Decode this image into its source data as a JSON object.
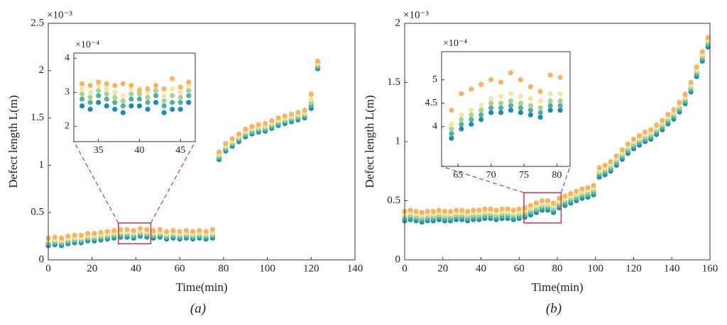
{
  "chart_data": [
    {
      "type": "scatter",
      "caption": "(a)",
      "x_label": "Time(min)",
      "y_label": "Defect length L(m)",
      "y_multiplier": "×10⁻³",
      "xlim": [
        0,
        140
      ],
      "xticks": [
        0,
        20,
        40,
        60,
        80,
        100,
        120,
        140
      ],
      "ylim": [
        0,
        2.5
      ],
      "yticks": [
        0,
        0.5,
        1,
        1.5,
        2,
        2.5
      ],
      "x": [
        0,
        3,
        6,
        9,
        12,
        15,
        18,
        21,
        24,
        27,
        30,
        33,
        36,
        39,
        42,
        45,
        48,
        51,
        54,
        57,
        60,
        63,
        66,
        69,
        72,
        75,
        78,
        81,
        84,
        87,
        90,
        93,
        96,
        99,
        102,
        105,
        108,
        111,
        114,
        117,
        120,
        123
      ],
      "series": [
        {
          "color": "#1f8bb5",
          "values": [
            0.15,
            0.16,
            0.15,
            0.17,
            0.18,
            0.18,
            0.2,
            0.2,
            0.21,
            0.22,
            0.23,
            0.24,
            0.24,
            0.23,
            0.25,
            0.24,
            0.23,
            0.24,
            0.22,
            0.23,
            0.22,
            0.23,
            0.22,
            0.23,
            0.22,
            0.23,
            1.06,
            1.15,
            1.2,
            1.25,
            1.3,
            1.33,
            1.35,
            1.36,
            1.39,
            1.42,
            1.44,
            1.46,
            1.48,
            1.5,
            1.6,
            2.02
          ]
        },
        {
          "color": "#4fb39a",
          "values": [
            0.17,
            0.18,
            0.17,
            0.19,
            0.2,
            0.2,
            0.22,
            0.22,
            0.23,
            0.24,
            0.25,
            0.26,
            0.26,
            0.25,
            0.27,
            0.26,
            0.25,
            0.26,
            0.24,
            0.25,
            0.24,
            0.25,
            0.24,
            0.25,
            0.24,
            0.25,
            1.08,
            1.17,
            1.22,
            1.27,
            1.32,
            1.35,
            1.37,
            1.38,
            1.41,
            1.44,
            1.46,
            1.48,
            1.5,
            1.52,
            1.63,
            2.04
          ]
        },
        {
          "color": "#a6d48f",
          "values": [
            0.19,
            0.2,
            0.19,
            0.21,
            0.22,
            0.22,
            0.24,
            0.24,
            0.25,
            0.26,
            0.27,
            0.28,
            0.28,
            0.27,
            0.29,
            0.28,
            0.27,
            0.28,
            0.26,
            0.27,
            0.26,
            0.27,
            0.26,
            0.27,
            0.26,
            0.27,
            1.1,
            1.19,
            1.24,
            1.29,
            1.34,
            1.37,
            1.39,
            1.4,
            1.43,
            1.46,
            1.48,
            1.5,
            1.52,
            1.54,
            1.66,
            2.06
          ]
        },
        {
          "color": "#f3e7a0",
          "values": [
            0.21,
            0.22,
            0.21,
            0.23,
            0.24,
            0.24,
            0.26,
            0.26,
            0.27,
            0.28,
            0.29,
            0.3,
            0.3,
            0.29,
            0.31,
            0.3,
            0.29,
            0.3,
            0.28,
            0.29,
            0.28,
            0.29,
            0.28,
            0.29,
            0.28,
            0.29,
            1.12,
            1.21,
            1.26,
            1.31,
            1.36,
            1.39,
            1.41,
            1.42,
            1.45,
            1.48,
            1.5,
            1.52,
            1.54,
            1.56,
            1.7,
            2.08
          ]
        },
        {
          "color": "#f9b35e",
          "values": [
            0.23,
            0.24,
            0.23,
            0.25,
            0.26,
            0.26,
            0.28,
            0.28,
            0.29,
            0.3,
            0.31,
            0.32,
            0.32,
            0.31,
            0.33,
            0.32,
            0.31,
            0.32,
            0.3,
            0.31,
            0.3,
            0.31,
            0.3,
            0.31,
            0.3,
            0.32,
            1.14,
            1.23,
            1.28,
            1.33,
            1.38,
            1.41,
            1.43,
            1.44,
            1.47,
            1.5,
            1.52,
            1.54,
            1.56,
            1.58,
            1.75,
            2.1
          ]
        }
      ]
    },
    {
      "type": "scatter",
      "y_multiplier": "×10⁻⁴",
      "xlim": [
        32,
        46.8
      ],
      "xticks": [
        35,
        40,
        45
      ],
      "ylim": [
        1.55,
        4.15
      ],
      "yticks": [
        2,
        3,
        4
      ],
      "x": [
        33,
        34,
        35,
        36,
        37,
        38,
        39,
        40,
        41,
        42,
        43,
        44,
        45,
        46
      ],
      "series": [
        {
          "color": "#1f8bb5",
          "values": [
            2.6,
            2.5,
            2.7,
            2.6,
            2.5,
            2.4,
            2.6,
            2.6,
            2.5,
            2.7,
            2.4,
            2.5,
            2.5,
            2.7
          ]
        },
        {
          "color": "#4fb39a",
          "values": [
            2.8,
            2.7,
            2.9,
            2.8,
            2.7,
            2.6,
            2.8,
            2.8,
            2.7,
            2.9,
            2.6,
            2.7,
            2.7,
            2.9
          ]
        },
        {
          "color": "#a6d48f",
          "values": [
            2.95,
            2.85,
            3.05,
            2.95,
            2.85,
            2.75,
            2.95,
            2.95,
            2.85,
            3.05,
            2.75,
            2.9,
            2.85,
            3.05
          ]
        },
        {
          "color": "#f3e7a0",
          "values": [
            3.1,
            3.0,
            3.2,
            3.1,
            3.0,
            2.9,
            3.1,
            3.1,
            3.0,
            3.2,
            2.9,
            3.1,
            3.0,
            3.2
          ]
        },
        {
          "color": "#f9b35e",
          "values": [
            3.25,
            3.2,
            3.3,
            3.25,
            3.2,
            3.25,
            3.2,
            3.05,
            3.1,
            3.2,
            3.1,
            3.4,
            3.15,
            3.3
          ]
        }
      ]
    },
    {
      "type": "scatter",
      "caption": "(b)",
      "x_label": "Time(min)",
      "y_label": "Defect length L(m)",
      "y_multiplier": "×10⁻³",
      "xlim": [
        0,
        160
      ],
      "xticks": [
        0,
        20,
        40,
        60,
        80,
        100,
        120,
        140,
        160
      ],
      "ylim": [
        0,
        2
      ],
      "yticks": [
        0,
        0.5,
        1,
        1.5,
        2
      ],
      "x": [
        0,
        3,
        6,
        9,
        12,
        15,
        18,
        21,
        24,
        27,
        30,
        33,
        36,
        39,
        42,
        45,
        48,
        51,
        54,
        57,
        60,
        63,
        66,
        69,
        72,
        75,
        78,
        81,
        84,
        87,
        90,
        93,
        96,
        99,
        102,
        105,
        108,
        111,
        114,
        117,
        120,
        123,
        126,
        129,
        132,
        135,
        138,
        141,
        144,
        147,
        150,
        153,
        156,
        159
      ],
      "series": [
        {
          "color": "#1f8bb5",
          "values": [
            0.33,
            0.34,
            0.33,
            0.32,
            0.33,
            0.33,
            0.34,
            0.33,
            0.33,
            0.34,
            0.34,
            0.33,
            0.34,
            0.34,
            0.35,
            0.35,
            0.34,
            0.35,
            0.35,
            0.34,
            0.35,
            0.36,
            0.38,
            0.4,
            0.42,
            0.42,
            0.4,
            0.44,
            0.46,
            0.48,
            0.5,
            0.52,
            0.53,
            0.55,
            0.7,
            0.72,
            0.75,
            0.8,
            0.85,
            0.9,
            0.94,
            0.97,
            1.0,
            1.02,
            1.06,
            1.1,
            1.15,
            1.19,
            1.25,
            1.32,
            1.42,
            1.55,
            1.68,
            1.8
          ]
        },
        {
          "color": "#4fb39a",
          "values": [
            0.35,
            0.36,
            0.35,
            0.34,
            0.35,
            0.35,
            0.36,
            0.35,
            0.35,
            0.36,
            0.36,
            0.35,
            0.36,
            0.36,
            0.37,
            0.37,
            0.36,
            0.37,
            0.37,
            0.36,
            0.37,
            0.38,
            0.4,
            0.42,
            0.44,
            0.44,
            0.42,
            0.46,
            0.48,
            0.5,
            0.52,
            0.54,
            0.55,
            0.57,
            0.72,
            0.74,
            0.77,
            0.82,
            0.87,
            0.92,
            0.96,
            0.99,
            1.02,
            1.04,
            1.08,
            1.12,
            1.17,
            1.21,
            1.27,
            1.34,
            1.44,
            1.57,
            1.7,
            1.82
          ]
        },
        {
          "color": "#a6d48f",
          "values": [
            0.37,
            0.38,
            0.37,
            0.36,
            0.37,
            0.37,
            0.38,
            0.37,
            0.37,
            0.38,
            0.38,
            0.37,
            0.38,
            0.38,
            0.39,
            0.39,
            0.38,
            0.39,
            0.39,
            0.38,
            0.39,
            0.4,
            0.42,
            0.44,
            0.46,
            0.46,
            0.44,
            0.48,
            0.5,
            0.52,
            0.54,
            0.56,
            0.57,
            0.59,
            0.74,
            0.76,
            0.79,
            0.84,
            0.89,
            0.94,
            0.98,
            1.01,
            1.04,
            1.06,
            1.1,
            1.14,
            1.19,
            1.23,
            1.29,
            1.36,
            1.46,
            1.59,
            1.72,
            1.84
          ]
        },
        {
          "color": "#f3e7a0",
          "values": [
            0.39,
            0.4,
            0.39,
            0.38,
            0.39,
            0.39,
            0.4,
            0.39,
            0.39,
            0.4,
            0.4,
            0.39,
            0.4,
            0.4,
            0.41,
            0.41,
            0.4,
            0.41,
            0.41,
            0.4,
            0.41,
            0.42,
            0.44,
            0.46,
            0.48,
            0.48,
            0.46,
            0.5,
            0.52,
            0.54,
            0.56,
            0.58,
            0.59,
            0.61,
            0.76,
            0.78,
            0.81,
            0.86,
            0.91,
            0.96,
            1.0,
            1.03,
            1.06,
            1.08,
            1.12,
            1.16,
            1.21,
            1.25,
            1.31,
            1.38,
            1.48,
            1.61,
            1.74,
            1.86
          ]
        },
        {
          "color": "#f9b35e",
          "values": [
            0.41,
            0.42,
            0.41,
            0.4,
            0.41,
            0.41,
            0.42,
            0.41,
            0.41,
            0.42,
            0.42,
            0.41,
            0.42,
            0.42,
            0.43,
            0.43,
            0.42,
            0.43,
            0.43,
            0.42,
            0.43,
            0.44,
            0.46,
            0.48,
            0.5,
            0.5,
            0.48,
            0.52,
            0.54,
            0.56,
            0.58,
            0.6,
            0.61,
            0.63,
            0.78,
            0.8,
            0.83,
            0.88,
            0.93,
            0.98,
            1.02,
            1.05,
            1.08,
            1.1,
            1.14,
            1.18,
            1.23,
            1.27,
            1.33,
            1.4,
            1.5,
            1.63,
            1.76,
            1.88
          ]
        }
      ]
    },
    {
      "type": "scatter",
      "y_multiplier": "×10⁻⁴",
      "xlim": [
        62.5,
        82
      ],
      "xticks": [
        65,
        70,
        75,
        80
      ],
      "ylim": [
        3.15,
        5.6
      ],
      "yticks": [
        4,
        4.5,
        5
      ],
      "x": [
        64,
        65.5,
        67,
        68.5,
        70,
        71.5,
        73,
        74.5,
        76,
        77.5,
        79,
        80.5
      ],
      "series": [
        {
          "color": "#1f8bb5",
          "values": [
            3.75,
            3.95,
            4.05,
            4.15,
            4.3,
            4.3,
            4.35,
            4.3,
            4.25,
            4.2,
            4.35,
            4.35
          ]
        },
        {
          "color": "#4fb39a",
          "values": [
            3.85,
            4.05,
            4.15,
            4.25,
            4.4,
            4.4,
            4.45,
            4.4,
            4.35,
            4.3,
            4.45,
            4.45
          ]
        },
        {
          "color": "#a6d48f",
          "values": [
            3.95,
            4.15,
            4.25,
            4.35,
            4.5,
            4.5,
            4.55,
            4.5,
            4.45,
            4.4,
            4.55,
            4.55
          ]
        },
        {
          "color": "#f3e7a0",
          "values": [
            4.05,
            4.25,
            4.35,
            4.45,
            4.6,
            4.65,
            4.7,
            4.65,
            4.6,
            4.55,
            4.7,
            4.7
          ]
        },
        {
          "color": "#f9b35e",
          "values": [
            4.35,
            4.7,
            4.8,
            4.9,
            5.0,
            4.95,
            5.15,
            5.0,
            4.85,
            4.75,
            5.1,
            5.05
          ]
        }
      ]
    }
  ]
}
